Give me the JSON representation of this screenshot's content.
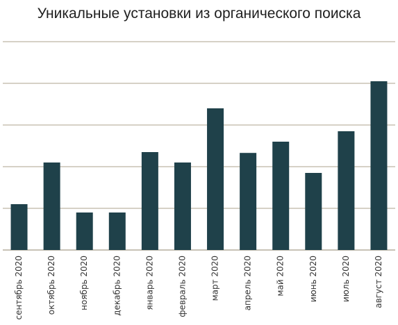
{
  "chart_data": {
    "type": "bar",
    "title": "Уникальные установки из органического поиска",
    "categories": [
      "сентябрь 2020",
      "октябрь 2020",
      "ноябрь 2020",
      "декабрь 2020",
      "январь 2020",
      "февраль 2020",
      "март 2020",
      "апрель 2020",
      "май 2020",
      "июнь 2020",
      "июль 2020",
      "август 2020"
    ],
    "values": [
      1.1,
      2.1,
      0.9,
      0.9,
      2.35,
      2.1,
      3.4,
      2.33,
      2.6,
      1.85,
      2.85,
      4.05
    ],
    "ylim": [
      0,
      5
    ],
    "grid": true,
    "y_tick_labels_shown": false,
    "colors": {
      "bar": "#1f414a",
      "grid": "#c9c2b3",
      "axis": "#b5ad9d"
    }
  }
}
